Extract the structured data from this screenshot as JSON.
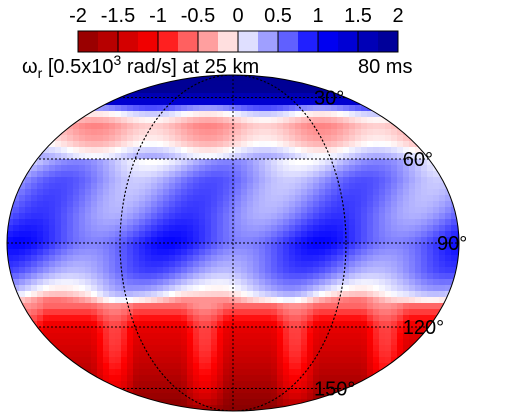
{
  "chart_data": {
    "type": "heatmap",
    "projection": "Mollweide (elliptical) map",
    "colorbar": {
      "ticks": [
        "-2",
        "-1.5",
        "-1",
        "-0.5",
        "0",
        "0.5",
        "1",
        "1.5",
        "2"
      ],
      "range": [
        -2,
        2
      ],
      "colors": {
        "min": "#8b0000",
        "low": "#ff0000",
        "mid": "#ffffff",
        "high": "#0000ff",
        "max": "#00008b"
      },
      "bands": 16
    },
    "title_prefix": "ω",
    "title_sub": "r",
    "title_main": " [0.5x10",
    "title_sup": "3",
    "title_tail": " rad/s] at 25 km",
    "time_label": "80 ms",
    "colatitude_labels": [
      "30°",
      "60°",
      "90°",
      "120°",
      "150°"
    ],
    "colatitude_lines": [
      30,
      60,
      90,
      120,
      150
    ],
    "meridian_lines": [
      -90,
      0,
      90
    ],
    "zonal_profile": [
      {
        "colat": 0,
        "value": 1.95
      },
      {
        "colat": 25,
        "value": 1.9
      },
      {
        "colat": 33,
        "value": 1.4
      },
      {
        "colat": 38,
        "value": 0.2
      },
      {
        "colat": 45,
        "value": -0.35
      },
      {
        "colat": 53,
        "value": -0.2
      },
      {
        "colat": 58,
        "value": 0.15
      },
      {
        "colat": 68,
        "value": 0.45
      },
      {
        "colat": 80,
        "value": 0.55
      },
      {
        "colat": 90,
        "value": 0.75
      },
      {
        "colat": 100,
        "value": 0.5
      },
      {
        "colat": 107,
        "value": 0.1
      },
      {
        "colat": 112,
        "value": -0.6
      },
      {
        "colat": 120,
        "value": -1.2
      },
      {
        "colat": 135,
        "value": -1.5
      },
      {
        "colat": 150,
        "value": -1.8
      },
      {
        "colat": 165,
        "value": -2.0
      },
      {
        "colat": 180,
        "value": -2.0
      }
    ]
  }
}
